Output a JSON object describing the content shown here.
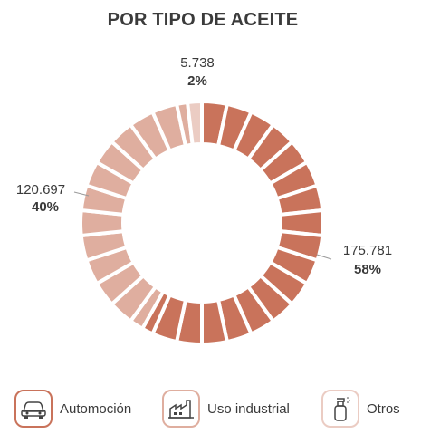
{
  "title": "POR TIPO DE ACEITE",
  "colors": {
    "automocion": "#c9735b",
    "industrial": "#dfae9f",
    "otros": "#ebccc3",
    "gap": "#ffffff"
  },
  "chart_data": {
    "type": "pie",
    "variant": "segmented-donut",
    "title": "POR TIPO DE ACEITE",
    "slices": [
      {
        "name": "Automoción",
        "value": 175781,
        "value_label": "175.781",
        "percent_label": "58%"
      },
      {
        "name": "Uso industrial",
        "value": 120697,
        "value_label": "120.697",
        "percent_label": "40%"
      },
      {
        "name": "Otros",
        "value": 5738,
        "value_label": "5.738",
        "percent_label": "2%"
      }
    ]
  },
  "legend": [
    {
      "label": "Automoción",
      "icon": "car-icon"
    },
    {
      "label": "Uso industrial",
      "icon": "factory-icon"
    },
    {
      "label": "Otros",
      "icon": "spray-bottle-icon"
    }
  ]
}
